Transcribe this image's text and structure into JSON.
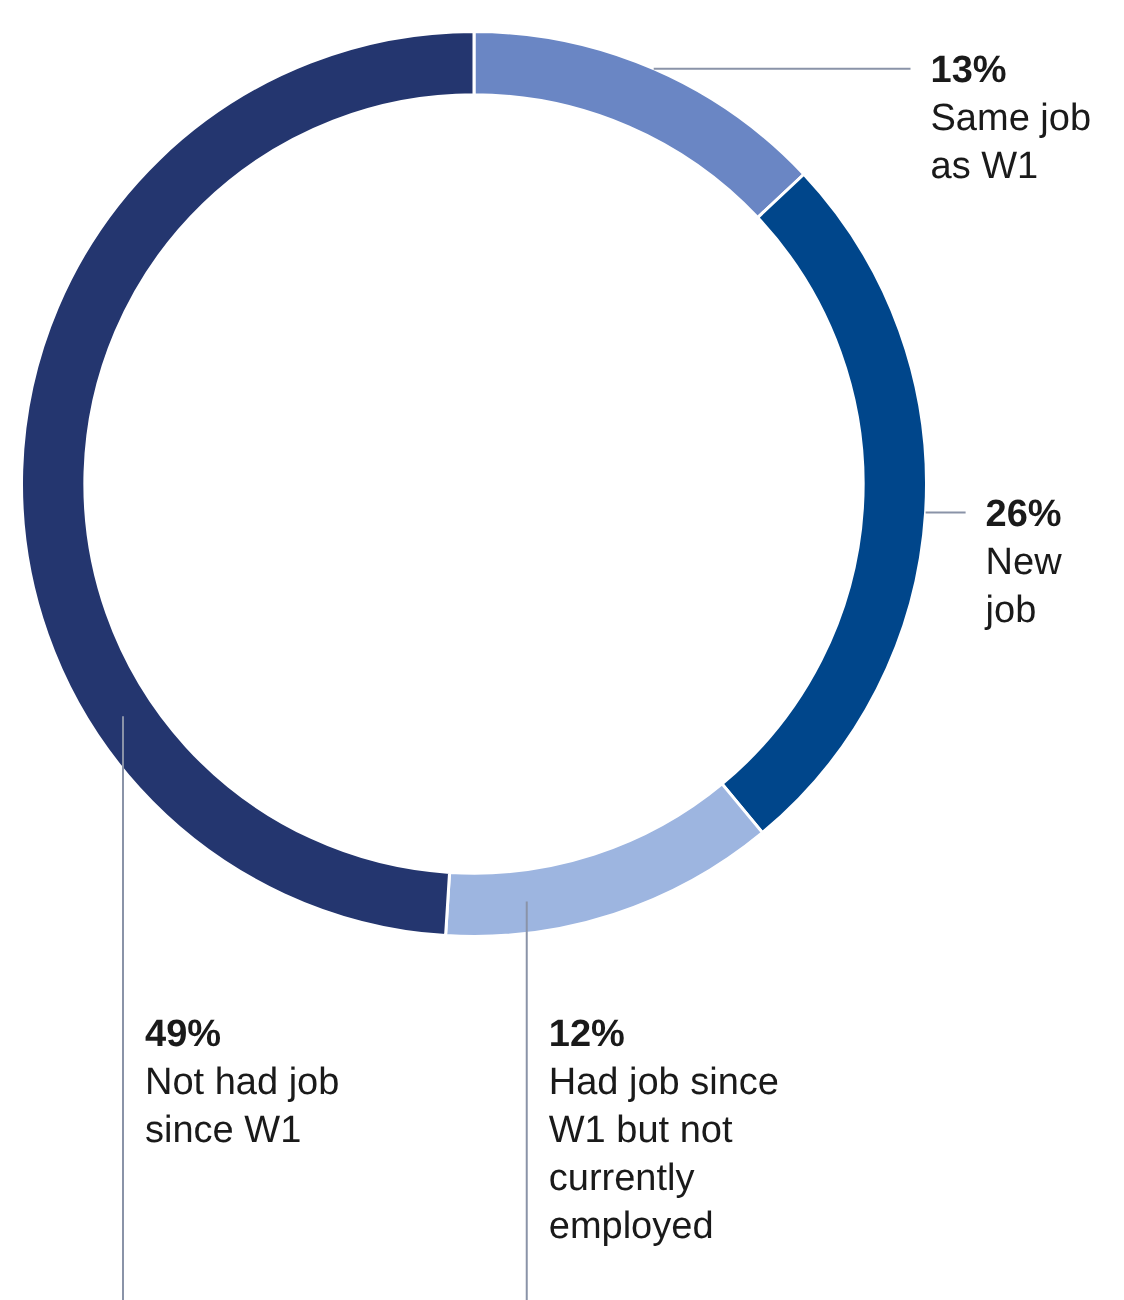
{
  "chart_data": {
    "type": "donut",
    "categories": [
      "Same job as W1",
      "New job",
      "Had job since W1 but not currently employed",
      "Not had job since W1"
    ],
    "values": [
      13,
      26,
      12,
      49
    ],
    "value_labels": [
      "13%",
      "26%",
      "12%",
      "49%"
    ],
    "colors": [
      "#6a86c4",
      "#00468b",
      "#9db5e0",
      "#24366f"
    ],
    "legend": false
  }
}
